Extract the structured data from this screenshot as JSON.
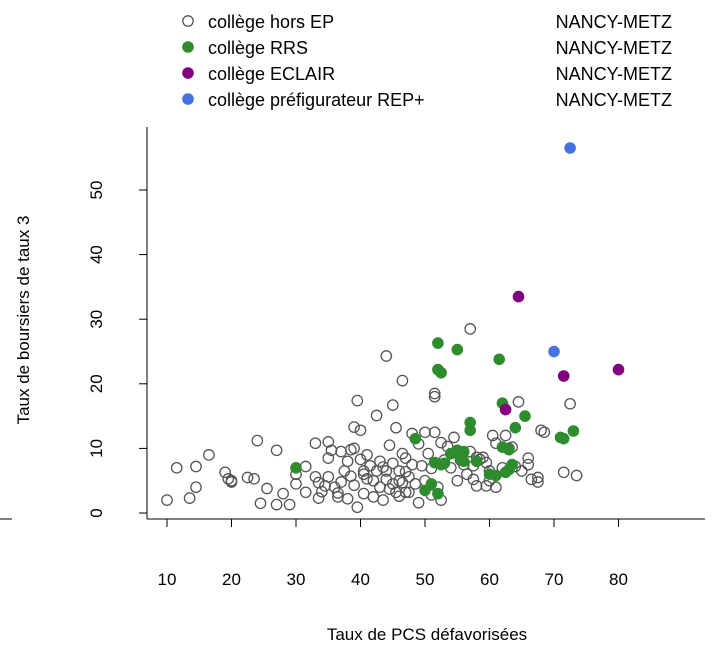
{
  "chart_data": {
    "type": "scatter",
    "xlabel": "Taux de PCS défavorisées",
    "ylabel": "Taux de boursiers de taux 3",
    "xlim": [
      8,
      82
    ],
    "ylim": [
      -1,
      59
    ],
    "xticks": [
      "10",
      "20",
      "30",
      "40",
      "50",
      "60",
      "70",
      "80"
    ],
    "yticks": [
      "0",
      "10",
      "20",
      "30",
      "40",
      "50"
    ],
    "legend": {
      "position": "top",
      "entries": [
        {
          "label": "collège hors EP",
          "region": "NANCY-METZ",
          "marker": "open-circle",
          "color": "#555555"
        },
        {
          "label": "collège RRS",
          "region": "NANCY-METZ",
          "marker": "filled-circle",
          "color": "#2e8b2e"
        },
        {
          "label": "collège ECLAIR",
          "region": "NANCY-METZ",
          "marker": "filled-circle",
          "color": "#800080"
        },
        {
          "label": "collège préfigurateur REP+",
          "region": "NANCY-METZ",
          "marker": "filled-circle",
          "color": "#4472e0"
        }
      ]
    },
    "series": [
      {
        "name": "collège hors EP",
        "color": "#555555",
        "marker": "open",
        "points": [
          [
            10,
            2
          ],
          [
            11.5,
            7
          ],
          [
            13.5,
            2.3
          ],
          [
            14.5,
            7.2
          ],
          [
            14.5,
            4
          ],
          [
            16.5,
            9
          ],
          [
            19,
            6.3
          ],
          [
            19.5,
            5.3
          ],
          [
            20,
            5
          ],
          [
            20,
            4.8
          ],
          [
            22.5,
            5.5
          ],
          [
            23.5,
            5.3
          ],
          [
            24,
            11.2
          ],
          [
            24.5,
            1.5
          ],
          [
            25.5,
            3.8
          ],
          [
            27,
            9.7
          ],
          [
            27,
            1.3
          ],
          [
            28,
            3
          ],
          [
            29,
            1.3
          ],
          [
            30,
            4.5
          ],
          [
            30,
            6
          ],
          [
            31.5,
            7.2
          ],
          [
            31.5,
            3.2
          ],
          [
            33,
            10.8
          ],
          [
            33,
            5.6
          ],
          [
            33.5,
            2.3
          ],
          [
            33.5,
            4.7
          ],
          [
            34,
            3.3
          ],
          [
            34.5,
            4.2
          ],
          [
            35,
            5.6
          ],
          [
            35,
            8.5
          ],
          [
            35,
            11
          ],
          [
            35.5,
            9.7
          ],
          [
            36,
            4
          ],
          [
            36.5,
            3.1
          ],
          [
            36.5,
            2.5
          ],
          [
            37,
            4.8
          ],
          [
            37,
            9.5
          ],
          [
            37.5,
            6.5
          ],
          [
            38,
            8
          ],
          [
            38,
            2.2
          ],
          [
            38.5,
            9.8
          ],
          [
            38.5,
            5.7
          ],
          [
            39,
            13.3
          ],
          [
            39,
            10
          ],
          [
            39,
            4.3
          ],
          [
            39.5,
            0.9
          ],
          [
            39.5,
            17.4
          ],
          [
            40,
            12.8
          ],
          [
            40,
            8.3
          ],
          [
            40.5,
            6.5
          ],
          [
            40.5,
            6
          ],
          [
            40.5,
            3
          ],
          [
            41,
            9
          ],
          [
            41,
            5.3
          ],
          [
            41.5,
            7.3
          ],
          [
            42,
            2.5
          ],
          [
            42,
            5
          ],
          [
            42.5,
            6.5
          ],
          [
            42.5,
            15.1
          ],
          [
            43,
            8
          ],
          [
            43,
            4
          ],
          [
            43.5,
            7.1
          ],
          [
            43.5,
            2
          ],
          [
            44,
            6.5
          ],
          [
            44,
            24.3
          ],
          [
            44,
            5.2
          ],
          [
            44.5,
            10.5
          ],
          [
            44.5,
            3.7
          ],
          [
            45,
            16.7
          ],
          [
            45,
            7.7
          ],
          [
            45,
            4.5
          ],
          [
            45.5,
            3.2
          ],
          [
            45.5,
            13.2
          ],
          [
            46,
            6.5
          ],
          [
            46,
            5
          ],
          [
            46,
            2.6
          ],
          [
            46.5,
            20.5
          ],
          [
            46.5,
            9.2
          ],
          [
            46.5,
            4.7
          ],
          [
            47,
            3.2
          ],
          [
            47,
            8.5
          ],
          [
            47,
            6.4
          ],
          [
            47.5,
            5.6
          ],
          [
            47.5,
            3.2
          ],
          [
            48,
            12.3
          ],
          [
            48,
            7.5
          ],
          [
            48.5,
            4.5
          ],
          [
            49,
            10.7
          ],
          [
            49,
            1.6
          ],
          [
            49.5,
            7.3
          ],
          [
            50,
            12.5
          ],
          [
            50,
            5
          ],
          [
            50.5,
            9.2
          ],
          [
            51,
            2.8
          ],
          [
            51,
            6.9
          ],
          [
            51.5,
            12.5
          ],
          [
            51.5,
            18.5
          ],
          [
            51.5,
            18
          ],
          [
            52,
            4
          ],
          [
            52.5,
            2
          ],
          [
            52.5,
            10.9
          ],
          [
            53,
            8.2
          ],
          [
            53.5,
            10.3
          ],
          [
            54,
            7
          ],
          [
            54.5,
            11.7
          ],
          [
            55,
            5
          ],
          [
            55.5,
            8.2
          ],
          [
            56,
            7.5
          ],
          [
            56.5,
            6
          ],
          [
            57,
            28.5
          ],
          [
            57,
            9.5
          ],
          [
            57.5,
            5.2
          ],
          [
            57.5,
            7.3
          ],
          [
            58,
            8.6
          ],
          [
            58,
            4.2
          ],
          [
            58.5,
            8.3
          ],
          [
            59,
            8.6
          ],
          [
            59.5,
            4.2
          ],
          [
            59.5,
            7.8
          ],
          [
            60,
            6.5
          ],
          [
            60,
            5
          ],
          [
            60.5,
            12
          ],
          [
            61,
            4
          ],
          [
            61,
            10.8
          ],
          [
            62,
            7
          ],
          [
            62.5,
            12
          ],
          [
            63,
            10
          ],
          [
            63.5,
            10.2
          ],
          [
            64,
            7.2
          ],
          [
            64.5,
            17.2
          ],
          [
            65,
            6.5
          ],
          [
            66,
            7.5
          ],
          [
            66,
            8.5
          ],
          [
            66.5,
            5.2
          ],
          [
            67.5,
            5.5
          ],
          [
            67.5,
            4.8
          ],
          [
            68,
            12.8
          ],
          [
            68.5,
            12.5
          ],
          [
            71.5,
            6.3
          ],
          [
            72.5,
            16.9
          ],
          [
            73.5,
            5.8
          ]
        ]
      },
      {
        "name": "collège RRS",
        "color": "#2e8b2e",
        "marker": "filled",
        "points": [
          [
            30,
            7
          ],
          [
            48.5,
            11.5
          ],
          [
            50,
            3.5
          ],
          [
            51,
            4.5
          ],
          [
            51.5,
            7.8
          ],
          [
            52,
            3
          ],
          [
            52,
            22.2
          ],
          [
            52,
            26.3
          ],
          [
            52.5,
            21.7
          ],
          [
            52.5,
            7.5
          ],
          [
            53,
            7.7
          ],
          [
            54,
            9.2
          ],
          [
            55,
            25.3
          ],
          [
            55,
            9.7
          ],
          [
            55.5,
            8.5
          ],
          [
            56,
            9.5
          ],
          [
            56,
            8
          ],
          [
            57,
            14
          ],
          [
            57,
            12.8
          ],
          [
            58,
            8
          ],
          [
            60,
            6
          ],
          [
            61,
            5.8
          ],
          [
            61.5,
            23.8
          ],
          [
            62,
            17
          ],
          [
            62,
            10.2
          ],
          [
            63,
            9.8
          ],
          [
            63.5,
            7.5
          ],
          [
            64,
            13.2
          ],
          [
            65.5,
            15
          ],
          [
            71,
            11.7
          ],
          [
            71.5,
            11.5
          ],
          [
            73,
            12.7
          ],
          [
            62.5,
            6.3
          ],
          [
            63,
            6.7
          ]
        ]
      },
      {
        "name": "collège ECLAIR",
        "color": "#800080",
        "marker": "filled",
        "points": [
          [
            62.5,
            16
          ],
          [
            64.5,
            33.5
          ],
          [
            71.5,
            21.2
          ],
          [
            80,
            22.2
          ]
        ]
      },
      {
        "name": "collège préfigurateur REP+",
        "color": "#4472e0",
        "marker": "filled",
        "points": [
          [
            70,
            25
          ],
          [
            72.5,
            56.5
          ]
        ]
      }
    ]
  }
}
